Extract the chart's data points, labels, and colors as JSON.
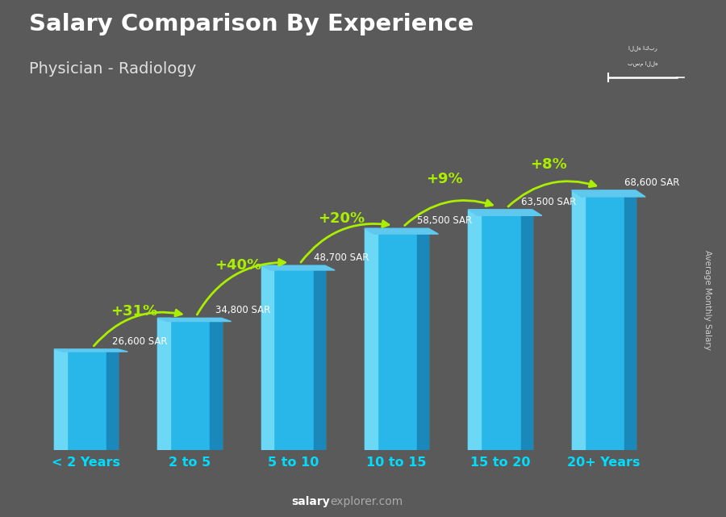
{
  "title": "Salary Comparison By Experience",
  "subtitle": "Physician - Radiology",
  "categories": [
    "< 2 Years",
    "2 to 5",
    "5 to 10",
    "10 to 15",
    "15 to 20",
    "20+ Years"
  ],
  "values": [
    26600,
    34800,
    48700,
    58500,
    63500,
    68600
  ],
  "salary_labels": [
    "26,600 SAR",
    "34,800 SAR",
    "48,700 SAR",
    "58,500 SAR",
    "63,500 SAR",
    "68,600 SAR"
  ],
  "pct_changes": [
    null,
    "+31%",
    "+40%",
    "+20%",
    "+9%",
    "+8%"
  ],
  "bar_face_color": "#29b6e8",
  "bar_left_color": "#6dd8f5",
  "bar_right_color": "#1a88bb",
  "bar_top_color": "#5ec8ef",
  "bg_color": "#5a5a5a",
  "title_color": "#ffffff",
  "subtitle_color": "#e0e0e0",
  "label_color": "#ffffff",
  "pct_color": "#aaee00",
  "xtick_color": "#00ddff",
  "ylabel_text": "Average Monthly Salary",
  "footer_salary_color": "#ffffff",
  "footer_explorer_color": "#aaaaaa",
  "max_val": 82000,
  "bar_width": 0.62
}
